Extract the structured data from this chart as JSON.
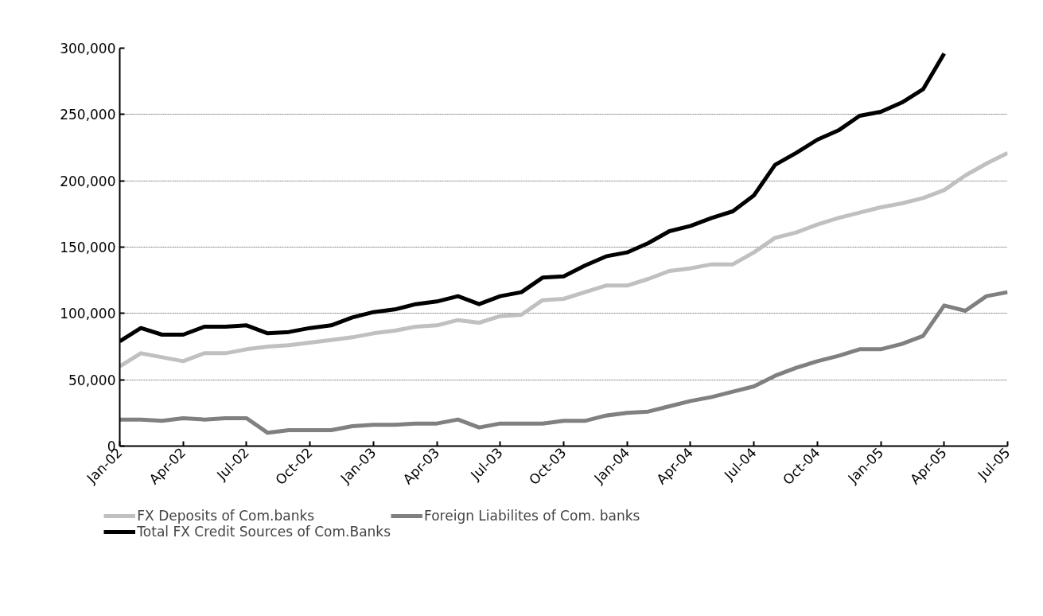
{
  "chart_data": {
    "type": "line",
    "x": [
      "2002-01",
      "2002-02",
      "2002-03",
      "2002-04",
      "2002-05",
      "2002-06",
      "2002-07",
      "2002-08",
      "2002-09",
      "2002-10",
      "2002-11",
      "2002-12",
      "2003-01",
      "2003-02",
      "2003-03",
      "2003-04",
      "2003-05",
      "2003-06",
      "2003-07",
      "2003-08",
      "2003-09",
      "2003-10",
      "2003-11",
      "2003-12",
      "2004-01",
      "2004-02",
      "2004-03",
      "2004-04",
      "2004-05",
      "2004-06",
      "2004-07",
      "2004-08",
      "2004-09",
      "2004-10",
      "2004-11",
      "2004-12",
      "2005-01",
      "2005-02",
      "2005-03",
      "2005-04",
      "2005-05",
      "2005-06",
      "2005-07"
    ],
    "series": [
      {
        "name": "FX Deposits of Com.banks",
        "color": "#c0c0c0",
        "values": [
          60000,
          70000,
          67000,
          64000,
          70000,
          70000,
          73000,
          75000,
          76000,
          78000,
          80000,
          82000,
          85000,
          87000,
          90000,
          91000,
          95000,
          93000,
          98000,
          99000,
          110000,
          111000,
          116000,
          121000,
          121000,
          126000,
          132000,
          134000,
          137000,
          137000,
          146000,
          157000,
          161000,
          167000,
          172000,
          176000,
          180000,
          183000,
          187000,
          193000,
          204000,
          213000,
          221000
        ]
      },
      {
        "name": "Foreign Liabilites of Com. banks",
        "color": "#808080",
        "values": [
          20000,
          20000,
          19000,
          21000,
          20000,
          21000,
          21000,
          10000,
          12000,
          12000,
          12000,
          15000,
          16000,
          16000,
          17000,
          17000,
          20000,
          14000,
          17000,
          17000,
          17000,
          19000,
          19000,
          23000,
          25000,
          26000,
          30000,
          34000,
          37000,
          41000,
          45000,
          53000,
          59000,
          64000,
          68000,
          73000,
          73000,
          77000,
          83000,
          106000,
          102000,
          113000,
          116000
        ]
      },
      {
        "name": "Total FX Credit Sources of Com.Banks",
        "color": "#000000",
        "values": [
          79000,
          89000,
          84000,
          84000,
          90000,
          90000,
          91000,
          85000,
          86000,
          89000,
          91000,
          97000,
          101000,
          103000,
          107000,
          109000,
          113000,
          107000,
          113000,
          116000,
          127000,
          128000,
          136000,
          143000,
          146000,
          153000,
          162000,
          166000,
          172000,
          177000,
          189000,
          212000,
          221000,
          231000,
          238000,
          249000,
          252000,
          259000,
          269000,
          296000,
          null,
          null,
          null
        ]
      }
    ],
    "xlim": [
      "2002-01",
      "2005-07"
    ],
    "xticks": [
      {
        "value": "2002-01",
        "label": "Jan-02"
      },
      {
        "value": "2002-04",
        "label": "Apr-02"
      },
      {
        "value": "2002-07",
        "label": "Jul-02"
      },
      {
        "value": "2002-10",
        "label": "Oct-02"
      },
      {
        "value": "2003-01",
        "label": "Jan-03"
      },
      {
        "value": "2003-04",
        "label": "Apr-03"
      },
      {
        "value": "2003-07",
        "label": "Jul-03"
      },
      {
        "value": "2003-10",
        "label": "Oct-03"
      },
      {
        "value": "2004-01",
        "label": "Jan-04"
      },
      {
        "value": "2004-04",
        "label": "Apr-04"
      },
      {
        "value": "2004-07",
        "label": "Jul-04"
      },
      {
        "value": "2004-10",
        "label": "Oct-04"
      },
      {
        "value": "2005-01",
        "label": "Jan-05"
      },
      {
        "value": "2005-04",
        "label": "Apr-05"
      },
      {
        "value": "2005-07",
        "label": "Jul-05"
      }
    ],
    "ylim": [
      0,
      300000
    ],
    "yticks": [
      0,
      {
        "value": 50000,
        "label": "50,000"
      },
      {
        "value": 100000,
        "label": "100,000"
      },
      {
        "value": 150000,
        "label": "150,000"
      },
      {
        "value": 200000,
        "label": "200,000"
      },
      {
        "value": 250000,
        "label": "250,000"
      },
      {
        "value": 300000,
        "label": "300,000"
      }
    ],
    "grid": "y",
    "legend": "bottom",
    "line_style": "solid"
  }
}
